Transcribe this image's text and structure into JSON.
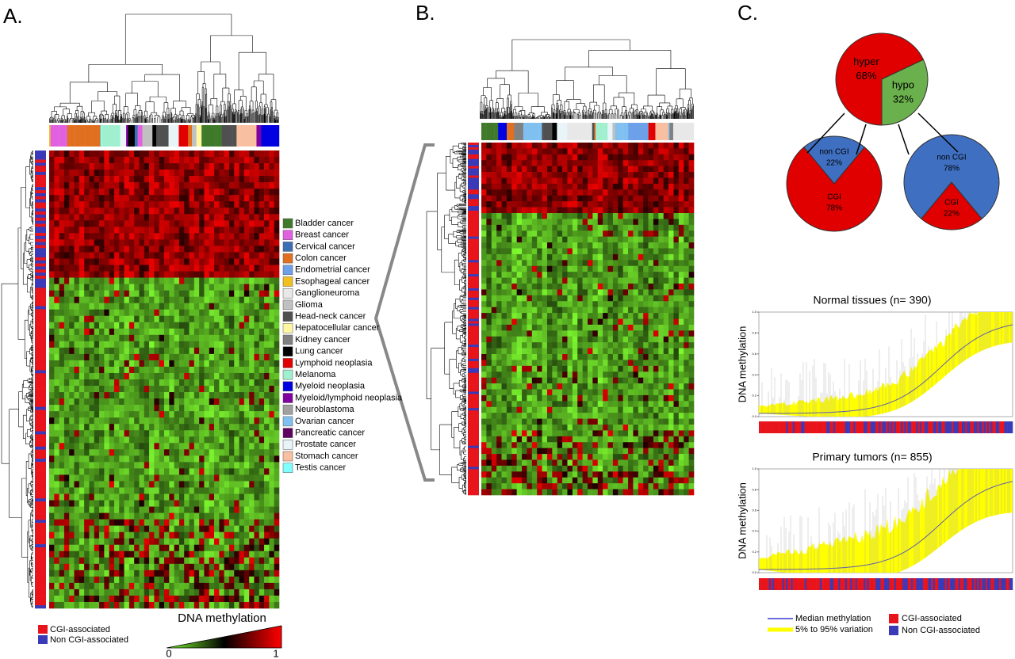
{
  "panels": {
    "a": "A.",
    "b": "B.",
    "c": "C."
  },
  "cancer_legend": [
    {
      "name": "Bladder cancer",
      "color": "#3f7a2a"
    },
    {
      "name": "Breast cancer",
      "color": "#e060e0"
    },
    {
      "name": "Cervical cancer",
      "color": "#3c6eb4"
    },
    {
      "name": "Colon cancer",
      "color": "#e07020"
    },
    {
      "name": "Endometrial cancer",
      "color": "#6ca0e8"
    },
    {
      "name": "Esophageal cancer",
      "color": "#f0c020"
    },
    {
      "name": "Ganglioneuroma",
      "color": "#e8e8e8"
    },
    {
      "name": "Glioma",
      "color": "#c0c0c0"
    },
    {
      "name": "Head-neck cancer",
      "color": "#505050"
    },
    {
      "name": "Hepatocellular cancer",
      "color": "#fff8a0"
    },
    {
      "name": "Kidney cancer",
      "color": "#808080"
    },
    {
      "name": "Lung cancer",
      "color": "#000000"
    },
    {
      "name": "Lymphoid neoplasia",
      "color": "#e00000"
    },
    {
      "name": "Melanoma",
      "color": "#a0f0d0"
    },
    {
      "name": "Myeloid neoplasia",
      "color": "#0000e0"
    },
    {
      "name": "Myeloid/lymphoid neoplasia",
      "color": "#8000a0"
    },
    {
      "name": "Neuroblastoma",
      "color": "#a0a0a0"
    },
    {
      "name": "Ovarian cancer",
      "color": "#80c0f0"
    },
    {
      "name": "Pancreatic cancer",
      "color": "#600060"
    },
    {
      "name": "Prostate cancer",
      "color": "#e8f4f8"
    },
    {
      "name": "Stomach cancer",
      "color": "#f8c0a0"
    },
    {
      "name": "Testis cancer",
      "color": "#80ffff"
    }
  ],
  "probe_legend": [
    {
      "name": "CGI-associated",
      "color": "#e8141b"
    },
    {
      "name": "Non CGI-associated",
      "color": "#3a3ab8"
    }
  ],
  "colorbar": {
    "title": "DNA methylation",
    "ticks": [
      0,
      1
    ]
  },
  "pies": [
    {
      "labels": [
        "hyper",
        "hypo"
      ],
      "values": [
        68,
        32
      ],
      "value_labels": [
        "68%",
        "32%"
      ],
      "colors": [
        "#e00000",
        "#6ab04c"
      ]
    },
    {
      "labels": [
        "non CGI",
        "CGI"
      ],
      "values": [
        22,
        78
      ],
      "value_labels": [
        "22%",
        "78%"
      ],
      "colors": [
        "#3f6fc0",
        "#e00000"
      ]
    },
    {
      "labels": [
        "CGI",
        "non CGI"
      ],
      "values": [
        22,
        78
      ],
      "value_labels": [
        "22%",
        "78%"
      ],
      "colors": [
        "#e00000",
        "#3f6fc0"
      ]
    }
  ],
  "profiles": [
    {
      "title": "Normal tissues (n= 390)",
      "ylabel": "DNA methylation"
    },
    {
      "title": "Primary tumors (n= 855)",
      "ylabel": "DNA methylation"
    }
  ],
  "profile_yticks": [
    {
      "value": 0,
      "label": "0.0"
    },
    {
      "value": 0.2,
      "label": "0.2"
    },
    {
      "value": 0.4,
      "label": "0.4"
    },
    {
      "value": 0.6,
      "label": "0.6"
    },
    {
      "value": 0.8,
      "label": "0.8"
    },
    {
      "value": 1,
      "label": "1.0"
    }
  ],
  "profile_legend": [
    {
      "name": "Median methylation",
      "color": "#3b3bd0"
    },
    {
      "name": "5% to 95% variation",
      "color": "#ffff00"
    }
  ]
}
